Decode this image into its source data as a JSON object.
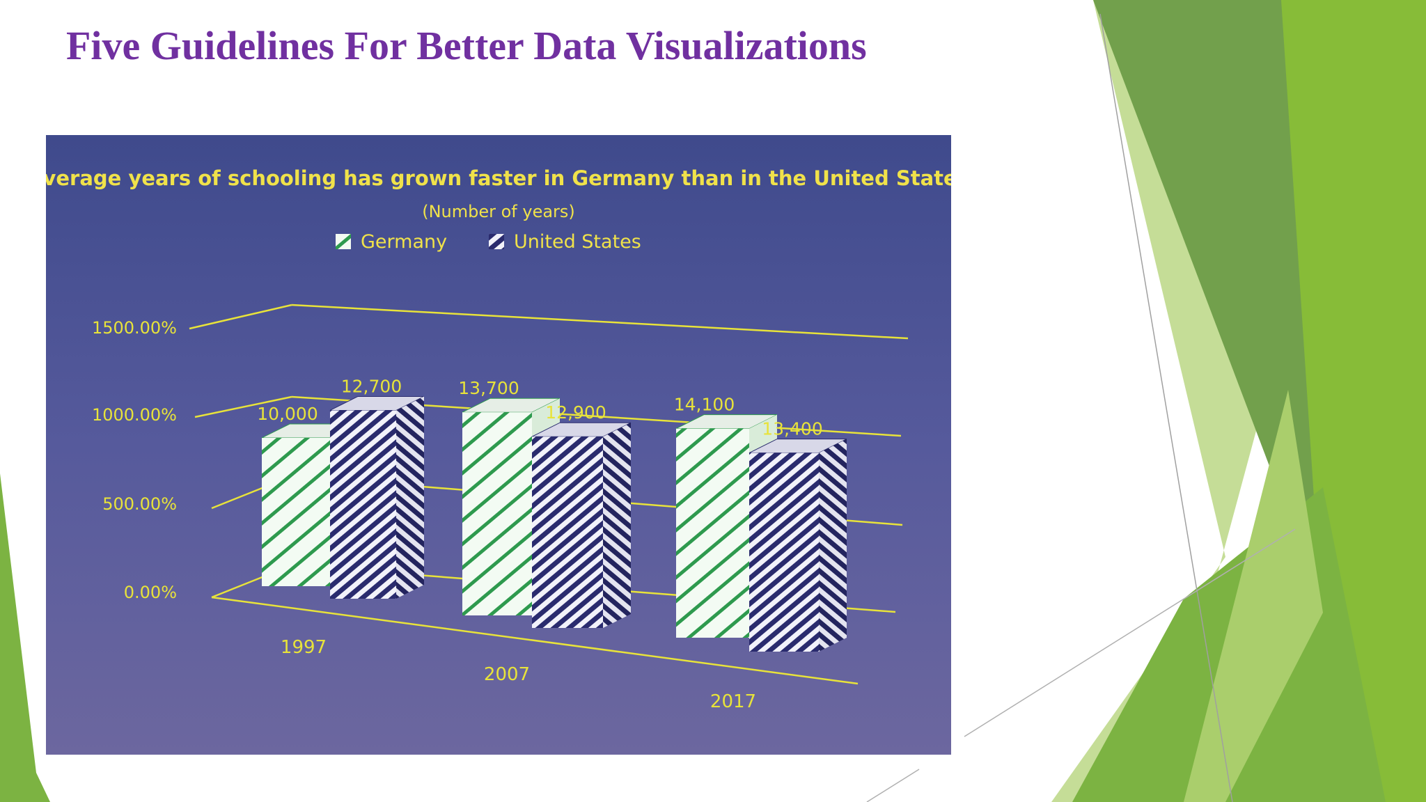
{
  "slide": {
    "title": "Five Guidelines For Better Data Visualizations",
    "colors": {
      "title": "#7030a0",
      "panel_top": "#3f4a8c",
      "panel_bottom": "#6c679f",
      "axis": "#e8e33a",
      "green_dark": "#6a9e3a",
      "green_mid": "#7bb32e",
      "green_light": "#cfe3a8"
    }
  },
  "chart_data": {
    "type": "bar",
    "title": "Average years of schooling has grown faster in Germany than in the United States",
    "subtitle": "(Number of years)",
    "categories": [
      "1997",
      "2007",
      "2017"
    ],
    "series": [
      {
        "name": "Germany",
        "values": [
          10000,
          13700,
          14100
        ],
        "labels": [
          "10,000",
          "13,700",
          "14,100"
        ],
        "color": "#2e9a4e",
        "pattern": "green-white-diagonal"
      },
      {
        "name": "United States",
        "values": [
          12700,
          12900,
          13400
        ],
        "labels": [
          "12,700",
          "12,900",
          "13,400"
        ],
        "color": "#2a2b6e",
        "pattern": "navy-white-diagonal"
      }
    ],
    "y_ticks": [
      "0.00%",
      "500.00%",
      "1000.00%",
      "1500.00%"
    ],
    "ylim": [
      0,
      15000
    ],
    "legend_position": "top-center",
    "style": "3d-perspective",
    "grid": true
  }
}
